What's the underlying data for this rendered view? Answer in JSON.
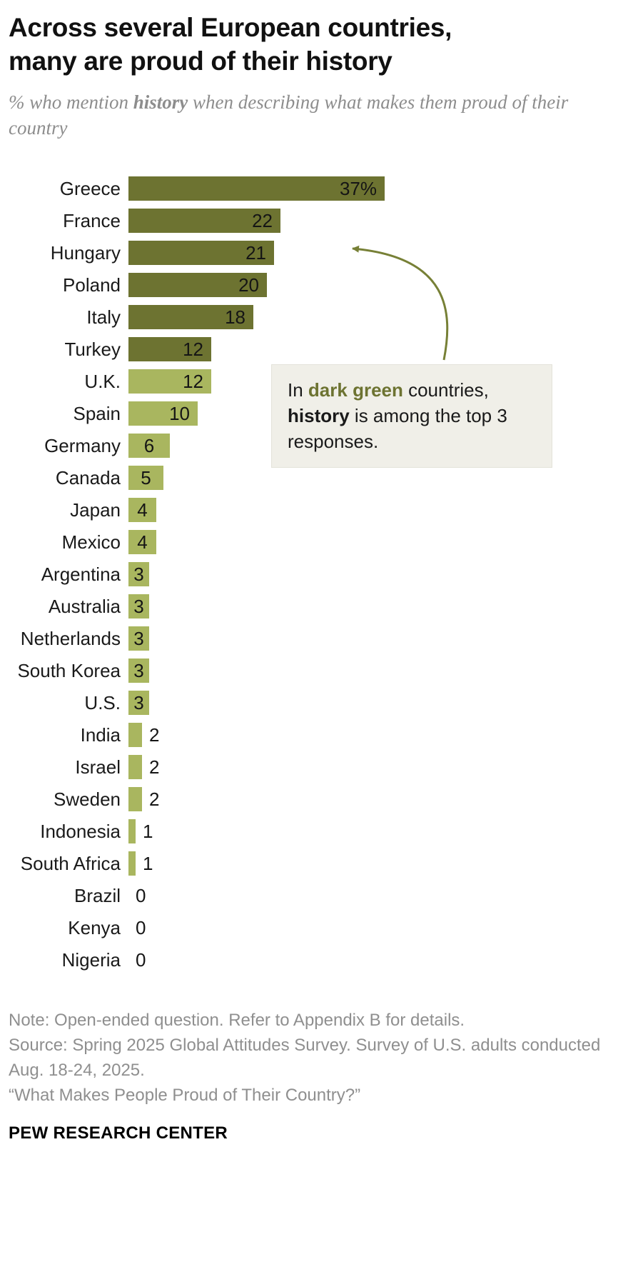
{
  "header": {
    "title_line1": "Across several European countries,",
    "title_line2": "many are proud of their history",
    "subtitle_pre": "% who mention ",
    "subtitle_bold": "history",
    "subtitle_post": " when describing what makes them proud of their country"
  },
  "chart_data": {
    "type": "bar",
    "orientation": "horizontal",
    "title": "Across several European countries, many are proud of their history",
    "subtitle": "% who mention history when describing what makes them proud of their country",
    "xlim": [
      0,
      40
    ],
    "grid": false,
    "legend": "none",
    "categories": [
      "Greece",
      "France",
      "Hungary",
      "Poland",
      "Italy",
      "Turkey",
      "U.K.",
      "Spain",
      "Germany",
      "Canada",
      "Japan",
      "Mexico",
      "Argentina",
      "Australia",
      "Netherlands",
      "South Korea",
      "U.S.",
      "India",
      "Israel",
      "Sweden",
      "Indonesia",
      "South Africa",
      "Brazil",
      "Kenya",
      "Nigeria"
    ],
    "values": [
      37,
      22,
      21,
      20,
      18,
      12,
      12,
      10,
      6,
      5,
      4,
      4,
      3,
      3,
      3,
      3,
      3,
      2,
      2,
      2,
      1,
      1,
      0,
      0,
      0
    ],
    "display_labels": [
      "37%",
      "22",
      "21",
      "20",
      "18",
      "12",
      "12",
      "10",
      "6",
      "5",
      "4",
      "4",
      "3",
      "3",
      "3",
      "3",
      "3",
      "2",
      "2",
      "2",
      "1",
      "1",
      "0",
      "0",
      "0"
    ],
    "bar_colors": [
      "dark",
      "dark",
      "dark",
      "dark",
      "dark",
      "dark",
      "light",
      "light",
      "light",
      "light",
      "light",
      "light",
      "light",
      "light",
      "light",
      "light",
      "light",
      "light",
      "light",
      "light",
      "light",
      "light",
      "none",
      "none",
      "none"
    ],
    "color_map": {
      "dark": "#6d7331",
      "light": "#a9b65f"
    },
    "annotation_meaning": "dark green = history is among the top 3 responses"
  },
  "annotation": {
    "p1": "In ",
    "green_bold": "dark green",
    "p2": " countries, ",
    "black_bold": "history",
    "p3": " is among the top 3 responses."
  },
  "colors": {
    "dark_green": "#6d7331",
    "light_green": "#a9b65f",
    "arrow": "#778036",
    "annotation_bg": "#f0efe8"
  },
  "footer": {
    "note": "Note: Open-ended question. Refer to Appendix B for details.",
    "source": "Source: Spring 2025 Global Attitudes Survey. Survey of U.S. adults conducted Aug. 18-24, 2025.",
    "quote": "“What Makes People Proud of Their Country?”",
    "brand": "PEW RESEARCH CENTER"
  }
}
